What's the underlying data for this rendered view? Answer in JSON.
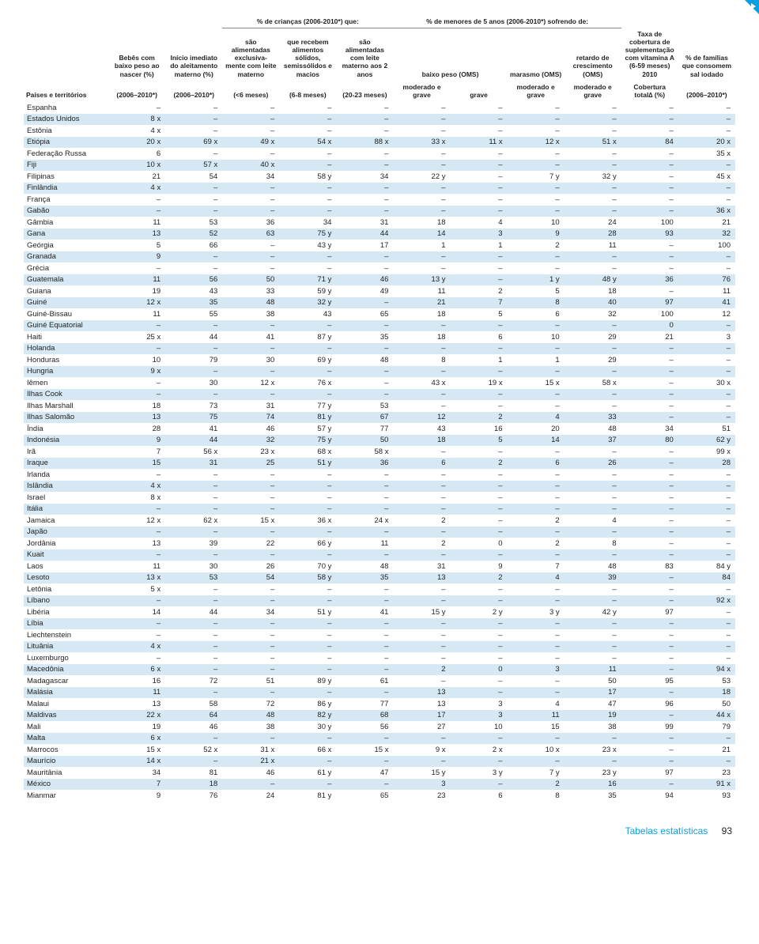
{
  "headers": {
    "super1": "% de crianças (2006-2010*) que:",
    "super2": "% de menores de 5 anos (2006-2010*) sofrendo de:",
    "col0": "Países e territórios",
    "col1a": "Bebês com baixo peso ao nascer (%)",
    "col1b": "(2006–2010*)",
    "col2a": "Início imediato do aleitamento materno (%)",
    "col2b": "(2006–2010*)",
    "col3a": "são alimentadas exclusiva- mente com leite materno",
    "col3b": "(<6 meses)",
    "col4a": "que recebem alimentos sólidos, semissólidos e macios",
    "col4b": "(6-8 meses)",
    "col5a": "são alimentadas com leite materno aos 2 anos",
    "col5b": "(20-23 meses)",
    "col6a": "baixo peso (OMS)",
    "col6b": "moderado e grave",
    "col7b": "grave",
    "col8a": "marasmo (OMS)",
    "col8b": "moderado e grave",
    "col9a": "retardo de crescimento (OMS)",
    "col9b": "moderado e grave",
    "col10a": "Taxa de cobertura de suplementação com vitamina A (6-59 meses) 2010",
    "col10b": "Cobertura total∆ (%)",
    "col11a": "% de famílias que consomem sal iodado",
    "col11b": "(2006–2010*)"
  },
  "rows": [
    [
      "Espanha",
      "–",
      "–",
      "–",
      "–",
      "–",
      "–",
      "–",
      "–",
      "–",
      "–",
      "–"
    ],
    [
      "Estados Unidos",
      "8 x",
      "–",
      "–",
      "–",
      "–",
      "–",
      "–",
      "–",
      "–",
      "–",
      "–"
    ],
    [
      "Estônia",
      "4 x",
      "–",
      "–",
      "–",
      "–",
      "–",
      "–",
      "–",
      "–",
      "–",
      "–"
    ],
    [
      "Etiópia",
      "20 x",
      "69 x",
      "49 x",
      "54 x",
      "88 x",
      "33 x",
      "11 x",
      "12 x",
      "51 x",
      "84",
      "20 x"
    ],
    [
      "Federação Russa",
      "6",
      "–",
      "–",
      "–",
      "–",
      "–",
      "–",
      "–",
      "–",
      "–",
      "35 x"
    ],
    [
      "Fiji",
      "10 x",
      "57 x",
      "40 x",
      "–",
      "–",
      "–",
      "–",
      "–",
      "–",
      "–",
      "–"
    ],
    [
      "Filipinas",
      "21",
      "54",
      "34",
      "58 y",
      "34",
      "22 y",
      "–",
      "7 y",
      "32 y",
      "–",
      "45 x"
    ],
    [
      "Finlândia",
      "4 x",
      "–",
      "–",
      "–",
      "–",
      "–",
      "–",
      "–",
      "–",
      "–",
      "–"
    ],
    [
      "França",
      "–",
      "–",
      "–",
      "–",
      "–",
      "–",
      "–",
      "–",
      "–",
      "–",
      "–"
    ],
    [
      "Gabão",
      "–",
      "–",
      "–",
      "–",
      "–",
      "–",
      "–",
      "–",
      "–",
      "–",
      "36 x"
    ],
    [
      "Gâmbia",
      "11",
      "53",
      "36",
      "34",
      "31",
      "18",
      "4",
      "10",
      "24",
      "100",
      "21"
    ],
    [
      "Gana",
      "13",
      "52",
      "63",
      "75 y",
      "44",
      "14",
      "3",
      "9",
      "28",
      "93",
      "32"
    ],
    [
      "Geórgia",
      "5",
      "66",
      "–",
      "43 y",
      "17",
      "1",
      "1",
      "2",
      "11",
      "–",
      "100"
    ],
    [
      "Granada",
      "9",
      "–",
      "–",
      "–",
      "–",
      "–",
      "–",
      "–",
      "–",
      "–",
      "–"
    ],
    [
      "Grécia",
      "–",
      "–",
      "–",
      "–",
      "–",
      "–",
      "–",
      "–",
      "–",
      "–",
      "–"
    ],
    [
      "Guatemala",
      "11",
      "56",
      "50",
      "71 y",
      "46",
      "13 y",
      "–",
      "1 y",
      "48 y",
      "36",
      "76"
    ],
    [
      "Guiana",
      "19",
      "43",
      "33",
      "59 y",
      "49",
      "11",
      "2",
      "5",
      "18",
      "–",
      "11"
    ],
    [
      "Guiné",
      "12 x",
      "35",
      "48",
      "32 y",
      "–",
      "21",
      "7",
      "8",
      "40",
      "97",
      "41"
    ],
    [
      "Guiné-Bissau",
      "11",
      "55",
      "38",
      "43",
      "65",
      "18",
      "5",
      "6",
      "32",
      "100",
      "12"
    ],
    [
      "Guiné Equatorial",
      "–",
      "–",
      "–",
      "–",
      "–",
      "–",
      "–",
      "–",
      "–",
      "0",
      "–"
    ],
    [
      "Haiti",
      "25 x",
      "44",
      "41",
      "87 y",
      "35",
      "18",
      "6",
      "10",
      "29",
      "21",
      "3"
    ],
    [
      "Holanda",
      "–",
      "–",
      "–",
      "–",
      "–",
      "–",
      "–",
      "–",
      "–",
      "–",
      "–"
    ],
    [
      "Honduras",
      "10",
      "79",
      "30",
      "69 y",
      "48",
      "8",
      "1",
      "1",
      "29",
      "–",
      "–"
    ],
    [
      "Hungria",
      "9 x",
      "–",
      "–",
      "–",
      "–",
      "–",
      "–",
      "–",
      "–",
      "–",
      "–"
    ],
    [
      "Iêmen",
      "–",
      "30",
      "12 x",
      "76 x",
      "–",
      "43 x",
      "19 x",
      "15 x",
      "58 x",
      "–",
      "30 x"
    ],
    [
      "Ilhas Cook",
      "–",
      "–",
      "–",
      "–",
      "–",
      "–",
      "–",
      "–",
      "–",
      "–",
      "–"
    ],
    [
      "Ilhas Marshall",
      "18",
      "73",
      "31",
      "77 y",
      "53",
      "–",
      "–",
      "–",
      "–",
      "–",
      "–"
    ],
    [
      "Ilhas Salomão",
      "13",
      "75",
      "74",
      "81 y",
      "67",
      "12",
      "2",
      "4",
      "33",
      "–",
      "–"
    ],
    [
      "Índia",
      "28",
      "41",
      "46",
      "57 y",
      "77",
      "43",
      "16",
      "20",
      "48",
      "34",
      "51"
    ],
    [
      "Indonésia",
      "9",
      "44",
      "32",
      "75 y",
      "50",
      "18",
      "5",
      "14",
      "37",
      "80",
      "62 y"
    ],
    [
      "Irã",
      "7",
      "56 x",
      "23 x",
      "68 x",
      "58 x",
      "–",
      "–",
      "–",
      "–",
      "–",
      "99 x"
    ],
    [
      "Iraque",
      "15",
      "31",
      "25",
      "51 y",
      "36",
      "6",
      "2",
      "6",
      "26",
      "–",
      "28"
    ],
    [
      "Irlanda",
      "–",
      "–",
      "–",
      "–",
      "–",
      "–",
      "–",
      "–",
      "–",
      "–",
      "–"
    ],
    [
      "Islândia",
      "4 x",
      "–",
      "–",
      "–",
      "–",
      "–",
      "–",
      "–",
      "–",
      "–",
      "–"
    ],
    [
      "Israel",
      "8 x",
      "–",
      "–",
      "–",
      "–",
      "–",
      "–",
      "–",
      "–",
      "–",
      "–"
    ],
    [
      "Itália",
      "–",
      "–",
      "–",
      "–",
      "–",
      "–",
      "–",
      "–",
      "–",
      "–",
      "–"
    ],
    [
      "Jamaica",
      "12 x",
      "62 x",
      "15 x",
      "36 x",
      "24 x",
      "2",
      "–",
      "2",
      "4",
      "–",
      "–"
    ],
    [
      "Japão",
      "–",
      "–",
      "–",
      "–",
      "–",
      "–",
      "–",
      "–",
      "–",
      "–",
      "–"
    ],
    [
      "Jordânia",
      "13",
      "39",
      "22",
      "66 y",
      "11",
      "2",
      "0",
      "2",
      "8",
      "–",
      "–"
    ],
    [
      "Kuait",
      "–",
      "–",
      "–",
      "–",
      "–",
      "–",
      "–",
      "–",
      "–",
      "–",
      "–"
    ],
    [
      "Laos",
      "11",
      "30",
      "26",
      "70 y",
      "48",
      "31",
      "9",
      "7",
      "48",
      "83",
      "84 y"
    ],
    [
      "Lesoto",
      "13 x",
      "53",
      "54",
      "58 y",
      "35",
      "13",
      "2",
      "4",
      "39",
      "–",
      "84"
    ],
    [
      "Letônia",
      "5 x",
      "–",
      "–",
      "–",
      "–",
      "–",
      "–",
      "–",
      "–",
      "–",
      "–"
    ],
    [
      "Líbano",
      "–",
      "–",
      "–",
      "–",
      "–",
      "–",
      "–",
      "–",
      "–",
      "–",
      "92 x"
    ],
    [
      "Libéria",
      "14",
      "44",
      "34",
      "51 y",
      "41",
      "15 y",
      "2 y",
      "3 y",
      "42 y",
      "97",
      "–"
    ],
    [
      "Líbia",
      "–",
      "–",
      "–",
      "–",
      "–",
      "–",
      "–",
      "–",
      "–",
      "–",
      "–"
    ],
    [
      "Liechtenstein",
      "–",
      "–",
      "–",
      "–",
      "–",
      "–",
      "–",
      "–",
      "–",
      "–",
      "–"
    ],
    [
      "Lituânia",
      "4 x",
      "–",
      "–",
      "–",
      "–",
      "–",
      "–",
      "–",
      "–",
      "–",
      "–"
    ],
    [
      "Luxemburgo",
      "–",
      "–",
      "–",
      "–",
      "–",
      "–",
      "–",
      "–",
      "–",
      "–",
      "–"
    ],
    [
      "Macedônia",
      "6 x",
      "–",
      "–",
      "–",
      "–",
      "2",
      "0",
      "3",
      "11",
      "–",
      "94 x"
    ],
    [
      "Madagascar",
      "16",
      "72",
      "51",
      "89 y",
      "61",
      "–",
      "–",
      "–",
      "50",
      "95",
      "53"
    ],
    [
      "Malásia",
      "11",
      "–",
      "–",
      "–",
      "–",
      "13",
      "–",
      "–",
      "17",
      "–",
      "18"
    ],
    [
      "Malaui",
      "13",
      "58",
      "72",
      "86 y",
      "77",
      "13",
      "3",
      "4",
      "47",
      "96",
      "50"
    ],
    [
      "Maldivas",
      "22 x",
      "64",
      "48",
      "82 y",
      "68",
      "17",
      "3",
      "11",
      "19",
      "–",
      "44 x"
    ],
    [
      "Mali",
      "19",
      "46",
      "38",
      "30 y",
      "56",
      "27",
      "10",
      "15",
      "38",
      "99",
      "79"
    ],
    [
      "Malta",
      "6 x",
      "–",
      "–",
      "–",
      "–",
      "–",
      "–",
      "–",
      "–",
      "–",
      "–"
    ],
    [
      "Marrocos",
      "15 x",
      "52 x",
      "31 x",
      "66 x",
      "15 x",
      "9 x",
      "2 x",
      "10 x",
      "23 x",
      "–",
      "21"
    ],
    [
      "Maurício",
      "14 x",
      "–",
      "21 x",
      "–",
      "–",
      "–",
      "–",
      "–",
      "–",
      "–",
      "–"
    ],
    [
      "Mauritânia",
      "34",
      "81",
      "46",
      "61 y",
      "47",
      "15 y",
      "3 y",
      "7 y",
      "23 y",
      "97",
      "23"
    ],
    [
      "México",
      "7",
      "18",
      "–",
      "–",
      "–",
      "3",
      "–",
      "2",
      "16",
      "–",
      "91 x"
    ],
    [
      "Mianmar",
      "9",
      "76",
      "24",
      "81 y",
      "65",
      "23",
      "6",
      "8",
      "35",
      "94",
      "93"
    ]
  ],
  "footer": {
    "label": "Tabelas estatísticas",
    "page": "93"
  },
  "colors": {
    "stripe": "#d5e8f3",
    "accent": "#0aa0e0",
    "text": "#222222"
  }
}
